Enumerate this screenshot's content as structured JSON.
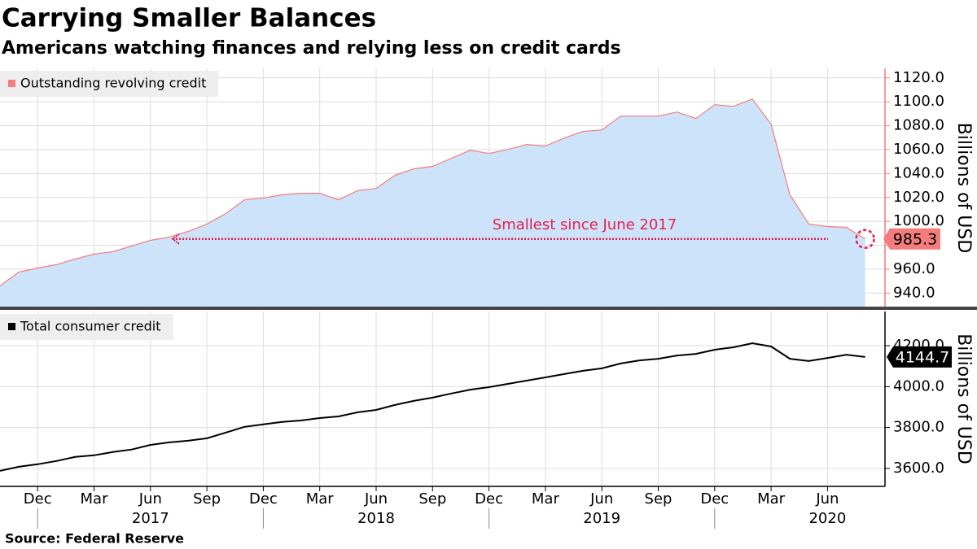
{
  "title": "Carrying Smaller Balances",
  "subtitle": "Americans watching finances and relying less on credit cards",
  "source": "Source: Federal Reserve",
  "chart_data": [
    {
      "type": "area",
      "y_label": "Billions of USD",
      "grid": true,
      "legend": "top-left",
      "annotation": "Smallest since June 2017",
      "series": [
        {
          "name": "Outstanding revolving credit",
          "color": "#f47c7c",
          "fill": "#cce3fa",
          "values": [
            946,
            957.6,
            961,
            963.8,
            968.5,
            972.6,
            974.6,
            979.4,
            984.1,
            986.8,
            991.6,
            997.7,
            1006.5,
            1018,
            1019.5,
            1022.2,
            1023.5,
            1023.5,
            1018,
            1025.6,
            1027.6,
            1038.5,
            1043.9,
            1046,
            1052.7,
            1059.5,
            1056.8,
            1060.2,
            1064.3,
            1063,
            1069.7,
            1075.2,
            1076.5,
            1088,
            1088,
            1088,
            1091.5,
            1086,
            1097.6,
            1096.2,
            1102.3,
            1081.3,
            1022.2,
            997.7,
            995.7,
            995,
            985.3
          ]
        }
      ],
      "ylim": [
        928,
        1128
      ],
      "yticks": [
        {
          "value": 940,
          "label": "940.0"
        },
        {
          "value": 960,
          "label": "960.0"
        },
        {
          "value": 980,
          "label": "980.0"
        },
        {
          "value": 1000,
          "label": "1000.0"
        },
        {
          "value": 1020,
          "label": "1020.0"
        },
        {
          "value": 1040,
          "label": "1040.0"
        },
        {
          "value": 1060,
          "label": "1060.0"
        },
        {
          "value": 1080,
          "label": "1080.0"
        },
        {
          "value": 1100,
          "label": "1100.0"
        },
        {
          "value": 1120,
          "label": "1120.0"
        }
      ]
    },
    {
      "type": "line",
      "y_label": "Billions of USD",
      "grid": true,
      "legend": "top-left",
      "categories": [
        null,
        null,
        "Dec",
        null,
        null,
        "Mar",
        null,
        null,
        "Jun",
        null,
        null,
        "Sep",
        null,
        null,
        "Dec",
        null,
        null,
        "Mar",
        null,
        null,
        "Jun",
        null,
        null,
        "Sep",
        null,
        null,
        "Dec",
        null,
        null,
        "Mar",
        null,
        null,
        "Jun",
        null,
        null,
        "Sep",
        null,
        null,
        "Dec",
        null,
        null,
        "Mar",
        null,
        null,
        "Jun",
        null,
        null
      ],
      "years": [
        "2017",
        "2018",
        "2019",
        "2020"
      ],
      "series": [
        {
          "name": "Total consumer credit",
          "color": "#000000",
          "values": [
            3588,
            3608,
            3620,
            3636,
            3656,
            3664,
            3680,
            3692,
            3715,
            3727,
            3735,
            3747,
            3775,
            3803,
            3815,
            3827,
            3834,
            3846,
            3854,
            3874,
            3886,
            3910,
            3930,
            3946,
            3966,
            3985,
            3997,
            4013,
            4029,
            4045,
            4061,
            4077,
            4089,
            4113,
            4128,
            4136,
            4152,
            4160,
            4180,
            4192,
            4212,
            4196,
            4136,
            4125,
            4140,
            4156,
            4144.7
          ]
        }
      ],
      "ylim": [
        3512,
        4367
      ],
      "yticks": [
        {
          "value": 3600,
          "label": "3600.0"
        },
        {
          "value": 3800,
          "label": "3800.0"
        },
        {
          "value": 4000,
          "label": "4000.0"
        },
        {
          "value": 4200,
          "label": "4200.0"
        }
      ]
    }
  ]
}
